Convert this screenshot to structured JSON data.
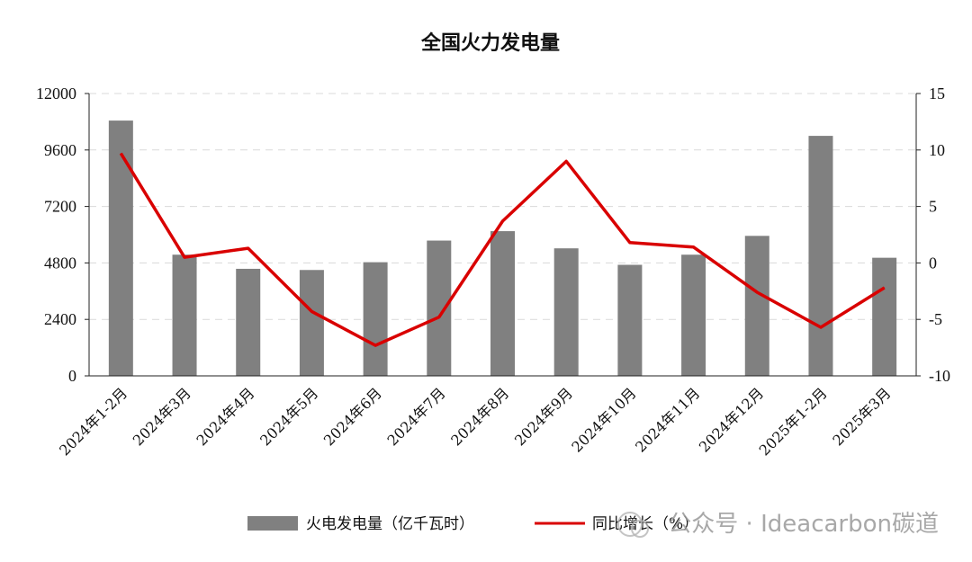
{
  "chart_data": {
    "type": "bar+line",
    "title": "全国火力发电量",
    "categories": [
      "2024年1-2月",
      "2024年3月",
      "2024年4月",
      "2024年5月",
      "2024年6月",
      "2024年7月",
      "2024年8月",
      "2024年9月",
      "2024年10月",
      "2024年11月",
      "2024年12月",
      "2025年1-2月",
      "2025年3月"
    ],
    "series": [
      {
        "name": "火电发电量（亿千瓦时）",
        "type": "bar",
        "axis": "left",
        "color": "#808080",
        "values": [
          10850,
          5150,
          4550,
          4500,
          4830,
          5750,
          6150,
          5420,
          4720,
          5150,
          5950,
          10200,
          5020
        ]
      },
      {
        "name": "同比增长（%）",
        "type": "line",
        "axis": "right",
        "color": "#d90000",
        "values": [
          9.7,
          0.5,
          1.3,
          -4.3,
          -7.3,
          -4.8,
          3.7,
          9.0,
          1.8,
          1.4,
          -2.6,
          -5.7,
          -2.2
        ]
      }
    ],
    "y_left": {
      "min": 0,
      "max": 12000,
      "ticks": [
        0,
        2400,
        4800,
        7200,
        9600,
        12000
      ]
    },
    "y_right": {
      "min": -10,
      "max": 15,
      "ticks": [
        -10,
        -5,
        0,
        5,
        10,
        15
      ]
    },
    "grid": true,
    "legend_position": "bottom"
  },
  "watermark": {
    "text": "公众号 · Ideacarbon碳道"
  }
}
